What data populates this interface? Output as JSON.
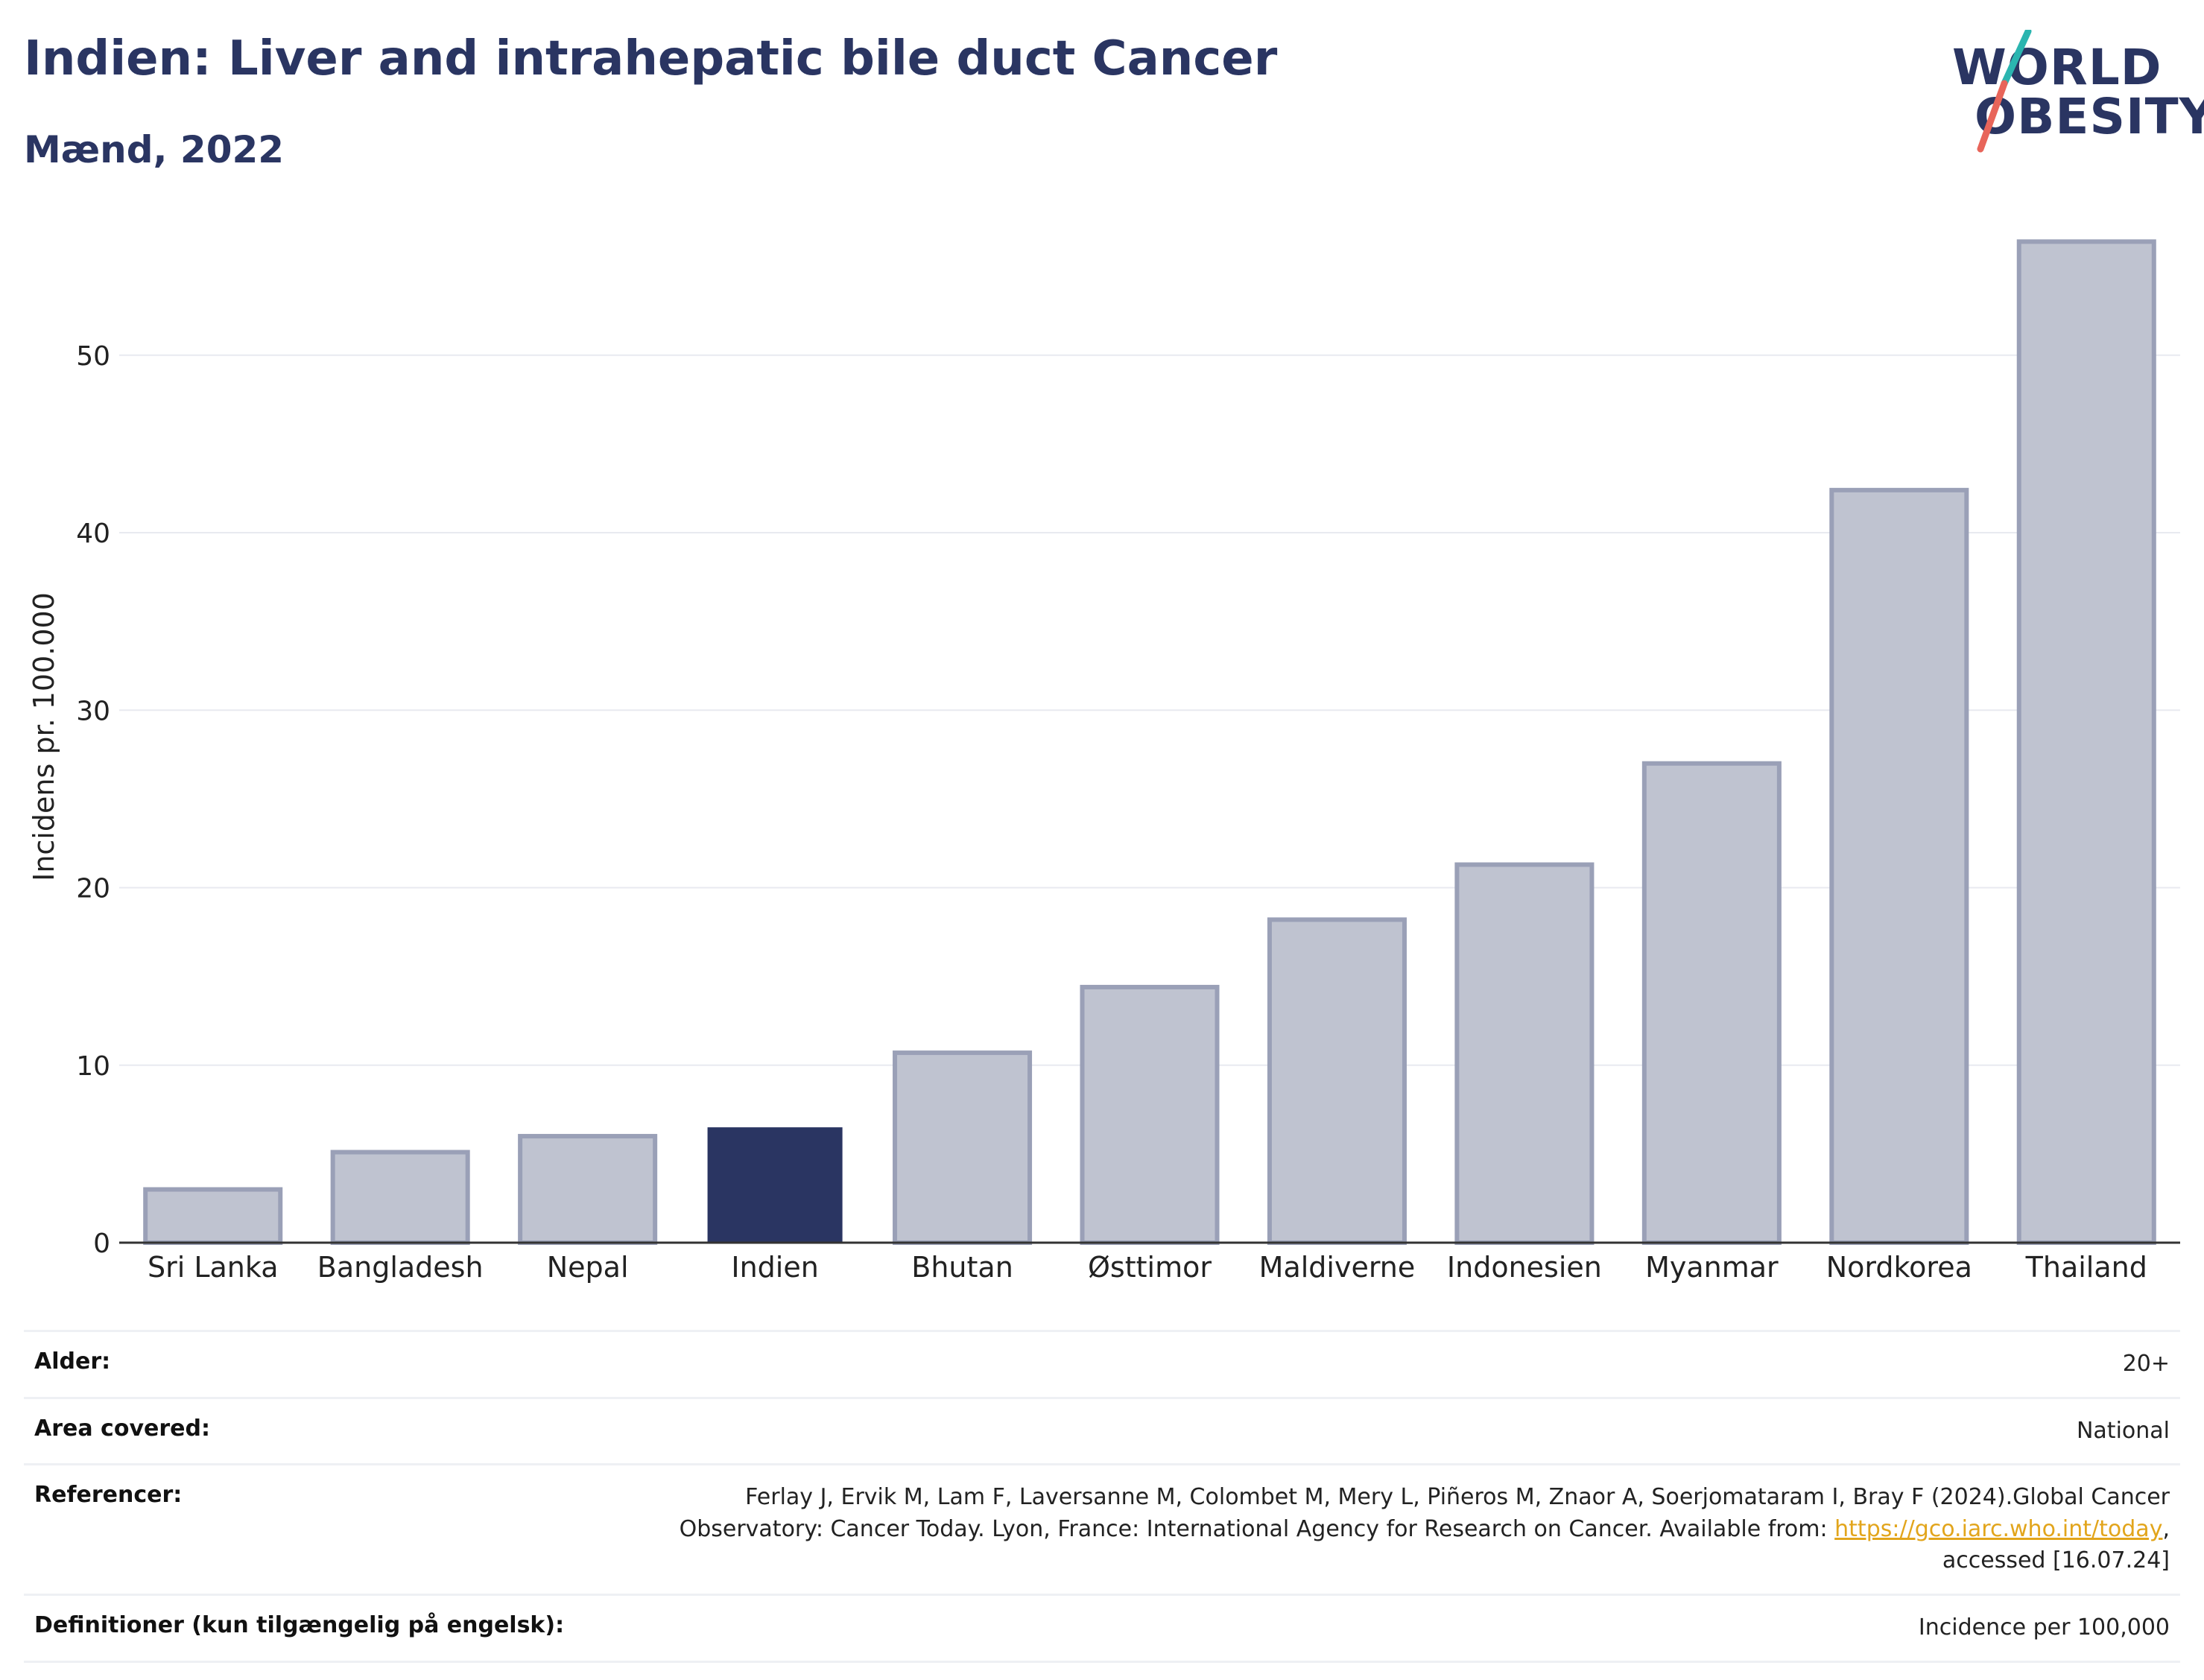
{
  "header": {
    "title": "Indien: Liver and intrahepatic bile duct Cancer",
    "subtitle": "Mænd, 2022"
  },
  "logo": {
    "line1": "WORLD",
    "line2": "OBESITY",
    "colors": {
      "text": "#2a3562",
      "slash_top": "#2bb5b0",
      "slash_bottom": "#e8655a"
    }
  },
  "chart_data": {
    "type": "bar",
    "title": "",
    "xlabel": "",
    "ylabel": "Incidens pr. 100.000",
    "ylim": [
      0,
      57
    ],
    "yticks": [
      0,
      10,
      20,
      30,
      40,
      50
    ],
    "grid": true,
    "categories": [
      "Sri Lanka",
      "Bangladesh",
      "Nepal",
      "Indien",
      "Bhutan",
      "Østtimor",
      "Maldiverne",
      "Indonesien",
      "Myanmar",
      "Nordkorea",
      "Thailand"
    ],
    "values": [
      3.0,
      5.1,
      6.0,
      6.5,
      10.7,
      14.4,
      18.2,
      21.3,
      27.0,
      42.4,
      56.4
    ],
    "highlight": "Indien",
    "colors": {
      "bar": "#bfc3d0",
      "bar_edge": "#9aa0b7",
      "highlight": "#2a3562"
    }
  },
  "meta": {
    "rows": [
      {
        "label": "Alder:",
        "value": "20+"
      },
      {
        "label": "Area covered:",
        "value": "National"
      },
      {
        "label": "Referencer:",
        "value_line1": "Ferlay J, Ervik M, Lam F, Laversanne M, Colombet M, Mery L, Piñeros M, Znaor A, Soerjomataram I, Bray F (2024).Global Cancer",
        "value_line2_pre": "Observatory: Cancer Today. Lyon, France: International Agency for Research on Cancer. Available from: ",
        "link": "https://gco.iarc.who.int/today",
        "value_line2_post": ",",
        "value_line3": "accessed [16.07.24]"
      },
      {
        "label": "Definitioner (kun tilgængelig på engelsk):",
        "value": "Incidence per 100,000"
      }
    ]
  }
}
